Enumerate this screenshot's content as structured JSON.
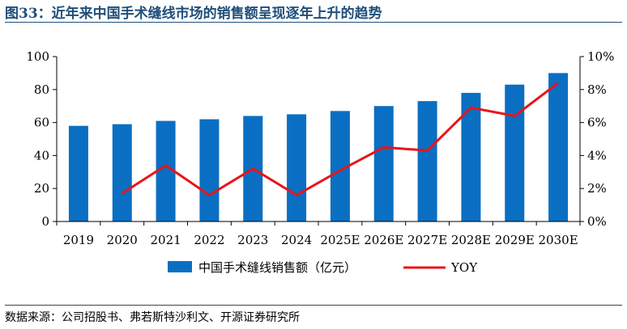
{
  "figure": {
    "title": "图33：近年来中国手术缝线市场的销售额呈现逐年上升的趋势",
    "source": "数据来源：公司招股书、弗若斯特沙利文、开源证券研究所"
  },
  "chart_data": {
    "type": "bar",
    "categories": [
      "2019",
      "2020",
      "2021",
      "2022",
      "2023",
      "2024",
      "2025E",
      "2026E",
      "2027E",
      "2028E",
      "2029E",
      "2030E"
    ],
    "series": [
      {
        "name": "中国手术缝线销售额（亿元）",
        "type": "bar",
        "axis": "left",
        "values": [
          58,
          59,
          61,
          62,
          64,
          65,
          67,
          70,
          73,
          78,
          83,
          90
        ]
      },
      {
        "name": "YOY",
        "type": "line",
        "axis": "right",
        "values": [
          null,
          1.7,
          3.4,
          1.6,
          3.2,
          1.6,
          3.1,
          4.5,
          4.3,
          6.9,
          6.4,
          8.4
        ]
      }
    ],
    "ylim": [
      0,
      100
    ],
    "y2lim": [
      0,
      10
    ],
    "yticks": [
      0,
      20,
      40,
      60,
      80,
      100
    ],
    "y2ticks": [
      "0%",
      "2%",
      "4%",
      "6%",
      "8%",
      "10%"
    ],
    "legend": "bottom",
    "grid": false,
    "colors": {
      "bar": "#0a6fc2",
      "line": "#e8141b"
    }
  }
}
